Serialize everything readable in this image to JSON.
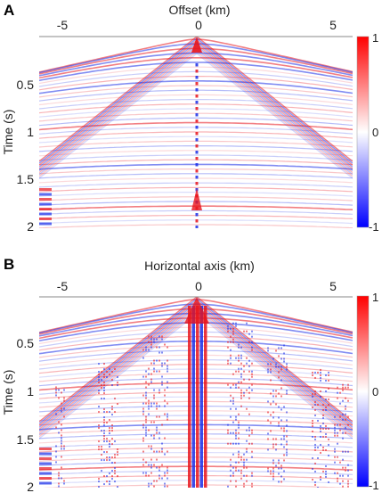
{
  "figure": {
    "panels": [
      {
        "letter": "A",
        "xlabel": "Offset (km)",
        "ylabel": "Time (s)",
        "x_ticks": [
          "-5",
          "0",
          "5"
        ],
        "y_ticks": [
          "0.5",
          "1",
          "1.5",
          "2"
        ],
        "colorbar_ticks": [
          "1",
          "0",
          "-1"
        ]
      },
      {
        "letter": "B",
        "xlabel": "Horizontal axis (km)",
        "ylabel": "Time (s)",
        "x_ticks": [
          "-5",
          "0",
          "5"
        ],
        "y_ticks": [
          "0.5",
          "1",
          "1.5",
          "2"
        ],
        "colorbar_ticks": [
          "1",
          "0",
          "-1"
        ]
      }
    ],
    "colors": {
      "positive": "#e8141c",
      "negative": "#1a2ee8",
      "zero": "#ffffff"
    }
  },
  "chart_data": [
    {
      "type": "heatmap",
      "title": "",
      "xlabel": "Offset (km)",
      "ylabel": "Time (s)",
      "xlim": [
        -6,
        6
      ],
      "ylim": [
        0,
        2
      ],
      "x_ticks": [
        -5,
        0,
        5
      ],
      "y_ticks": [
        0.5,
        1,
        1.5,
        2
      ],
      "colorbar": {
        "range": [
          -1,
          1
        ],
        "ticks": [
          -1,
          0,
          1
        ],
        "colormap": "blue-white-red"
      }
    },
    {
      "type": "heatmap",
      "title": "",
      "xlabel": "Horizontal axis (km)",
      "ylabel": "Time (s)",
      "xlim": [
        -6,
        6
      ],
      "ylim": [
        0,
        2
      ],
      "x_ticks": [
        -5,
        0,
        5
      ],
      "y_ticks": [
        0.5,
        1,
        1.5,
        2
      ],
      "colorbar": {
        "range": [
          -1,
          1
        ],
        "ticks": [
          -1,
          0,
          1
        ],
        "colormap": "blue-white-red"
      }
    }
  ]
}
